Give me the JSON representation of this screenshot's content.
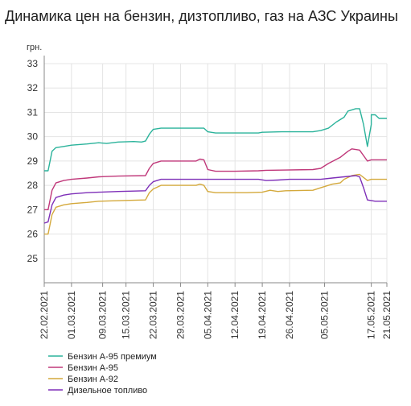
{
  "chart_data": {
    "type": "line",
    "title": "Динамика цен на бензин, дизтопливо, газ на АЗС Украины",
    "ylabel": "грн.",
    "xlabel": "",
    "ylim": [
      24,
      33
    ],
    "yticks": [
      25,
      26,
      27,
      28,
      29,
      30,
      31,
      32,
      33
    ],
    "xlim": [
      "2021-02-22",
      "2021-05-21"
    ],
    "xticks": [
      "22.02.2021",
      "01.03.2021",
      "09.03.2021",
      "15.03.2021",
      "22.03.2021",
      "29.03.2021",
      "05.04.2021",
      "12.04.2021",
      "19.04.2021",
      "26.04.2021",
      "05.05.2021",
      "17.05.2021",
      "21.05.2021"
    ],
    "grid": true,
    "legend": "bottom-left",
    "series": [
      {
        "name": "Бензин А-95 премиум",
        "color": "#2bb39b",
        "points": [
          [
            "2021-02-22",
            28.6
          ],
          [
            "2021-02-23",
            28.6
          ],
          [
            "2021-02-24",
            29.4
          ],
          [
            "2021-02-25",
            29.55
          ],
          [
            "2021-02-27",
            29.6
          ],
          [
            "2021-03-01",
            29.65
          ],
          [
            "2021-03-05",
            29.7
          ],
          [
            "2021-03-08",
            29.75
          ],
          [
            "2021-03-10",
            29.72
          ],
          [
            "2021-03-13",
            29.78
          ],
          [
            "2021-03-17",
            29.8
          ],
          [
            "2021-03-19",
            29.78
          ],
          [
            "2021-03-20",
            29.82
          ],
          [
            "2021-03-21",
            30.1
          ],
          [
            "2021-03-22",
            30.3
          ],
          [
            "2021-03-24",
            30.35
          ],
          [
            "2021-04-01",
            30.35
          ],
          [
            "2021-04-04",
            30.35
          ],
          [
            "2021-04-05",
            30.2
          ],
          [
            "2021-04-07",
            30.15
          ],
          [
            "2021-04-12",
            30.15
          ],
          [
            "2021-04-18",
            30.15
          ],
          [
            "2021-04-19",
            30.18
          ],
          [
            "2021-04-24",
            30.2
          ],
          [
            "2021-05-02",
            30.2
          ],
          [
            "2021-05-04",
            30.25
          ],
          [
            "2021-05-06",
            30.35
          ],
          [
            "2021-05-08",
            30.6
          ],
          [
            "2021-05-10",
            30.8
          ],
          [
            "2021-05-11",
            31.05
          ],
          [
            "2021-05-13",
            31.15
          ],
          [
            "2021-05-14",
            31.15
          ],
          [
            "2021-05-15",
            30.5
          ],
          [
            "2021-05-16",
            29.6
          ],
          [
            "2021-05-17",
            30.5
          ],
          [
            "2021-05-17",
            30.9
          ],
          [
            "2021-05-18",
            30.9
          ],
          [
            "2021-05-19",
            30.75
          ],
          [
            "2021-05-21",
            30.75
          ]
        ]
      },
      {
        "name": "Бензин А-95",
        "color": "#c0387a",
        "points": [
          [
            "2021-02-22",
            27.0
          ],
          [
            "2021-02-23",
            27.0
          ],
          [
            "2021-02-24",
            27.8
          ],
          [
            "2021-02-25",
            28.1
          ],
          [
            "2021-02-27",
            28.2
          ],
          [
            "2021-03-01",
            28.25
          ],
          [
            "2021-03-05",
            28.3
          ],
          [
            "2021-03-08",
            28.35
          ],
          [
            "2021-03-13",
            28.38
          ],
          [
            "2021-03-20",
            28.4
          ],
          [
            "2021-03-21",
            28.7
          ],
          [
            "2021-03-22",
            28.9
          ],
          [
            "2021-03-24",
            29.0
          ],
          [
            "2021-04-02",
            29.0
          ],
          [
            "2021-04-03",
            29.08
          ],
          [
            "2021-04-04",
            29.05
          ],
          [
            "2021-04-05",
            28.65
          ],
          [
            "2021-04-07",
            28.58
          ],
          [
            "2021-04-12",
            28.58
          ],
          [
            "2021-04-18",
            28.6
          ],
          [
            "2021-04-20",
            28.62
          ],
          [
            "2021-04-25",
            28.63
          ],
          [
            "2021-05-02",
            28.65
          ],
          [
            "2021-05-04",
            28.7
          ],
          [
            "2021-05-06",
            28.9
          ],
          [
            "2021-05-09",
            29.15
          ],
          [
            "2021-05-11",
            29.4
          ],
          [
            "2021-05-12",
            29.5
          ],
          [
            "2021-05-14",
            29.45
          ],
          [
            "2021-05-16",
            29.0
          ],
          [
            "2021-05-17",
            29.05
          ],
          [
            "2021-05-21",
            29.05
          ]
        ]
      },
      {
        "name": "Бензин А-92",
        "color": "#d4a93c",
        "points": [
          [
            "2021-02-22",
            26.0
          ],
          [
            "2021-02-23",
            26.0
          ],
          [
            "2021-02-24",
            26.8
          ],
          [
            "2021-02-25",
            27.1
          ],
          [
            "2021-02-27",
            27.2
          ],
          [
            "2021-03-01",
            27.25
          ],
          [
            "2021-03-05",
            27.3
          ],
          [
            "2021-03-08",
            27.35
          ],
          [
            "2021-03-15",
            27.38
          ],
          [
            "2021-03-20",
            27.4
          ],
          [
            "2021-03-21",
            27.7
          ],
          [
            "2021-03-22",
            27.85
          ],
          [
            "2021-03-24",
            28.0
          ],
          [
            "2021-04-02",
            28.0
          ],
          [
            "2021-04-03",
            28.05
          ],
          [
            "2021-04-04",
            28.0
          ],
          [
            "2021-04-05",
            27.75
          ],
          [
            "2021-04-07",
            27.7
          ],
          [
            "2021-04-15",
            27.7
          ],
          [
            "2021-04-19",
            27.72
          ],
          [
            "2021-04-21",
            27.8
          ],
          [
            "2021-04-23",
            27.75
          ],
          [
            "2021-04-25",
            27.78
          ],
          [
            "2021-05-02",
            27.8
          ],
          [
            "2021-05-04",
            27.9
          ],
          [
            "2021-05-07",
            28.05
          ],
          [
            "2021-05-09",
            28.1
          ],
          [
            "2021-05-10",
            28.25
          ],
          [
            "2021-05-12",
            28.4
          ],
          [
            "2021-05-14",
            28.45
          ],
          [
            "2021-05-16",
            28.2
          ],
          [
            "2021-05-17",
            28.25
          ],
          [
            "2021-05-21",
            28.25
          ]
        ]
      },
      {
        "name": "Дизельное топливо",
        "color": "#7e2fb8",
        "points": [
          [
            "2021-02-22",
            26.45
          ],
          [
            "2021-02-23",
            26.5
          ],
          [
            "2021-02-24",
            27.2
          ],
          [
            "2021-02-25",
            27.5
          ],
          [
            "2021-02-27",
            27.6
          ],
          [
            "2021-03-01",
            27.65
          ],
          [
            "2021-03-05",
            27.7
          ],
          [
            "2021-03-08",
            27.72
          ],
          [
            "2021-03-13",
            27.75
          ],
          [
            "2021-03-20",
            27.78
          ],
          [
            "2021-03-21",
            28.0
          ],
          [
            "2021-03-22",
            28.15
          ],
          [
            "2021-03-24",
            28.25
          ],
          [
            "2021-04-05",
            28.25
          ],
          [
            "2021-04-18",
            28.25
          ],
          [
            "2021-04-20",
            28.2
          ],
          [
            "2021-04-23",
            28.22
          ],
          [
            "2021-04-26",
            28.25
          ],
          [
            "2021-05-01",
            28.25
          ],
          [
            "2021-05-04",
            28.25
          ],
          [
            "2021-05-07",
            28.3
          ],
          [
            "2021-05-10",
            28.35
          ],
          [
            "2021-05-13",
            28.4
          ],
          [
            "2021-05-14",
            28.35
          ],
          [
            "2021-05-15",
            27.9
          ],
          [
            "2021-05-16",
            27.4
          ],
          [
            "2021-05-18",
            27.35
          ],
          [
            "2021-05-21",
            27.35
          ]
        ]
      }
    ]
  }
}
